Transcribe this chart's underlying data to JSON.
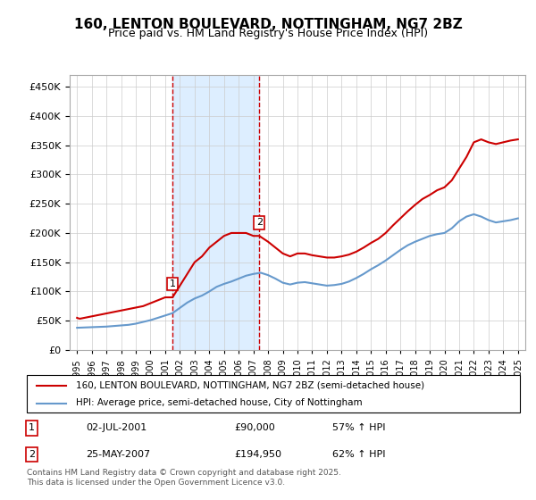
{
  "title": "160, LENTON BOULEVARD, NOTTINGHAM, NG7 2BZ",
  "subtitle": "Price paid vs. HM Land Registry's House Price Index (HPI)",
  "legend_line1": "160, LENTON BOULEVARD, NOTTINGHAM, NG7 2BZ (semi-detached house)",
  "legend_line2": "HPI: Average price, semi-detached house, City of Nottingham",
  "footnote": "Contains HM Land Registry data © Crown copyright and database right 2025.\nThis data is licensed under the Open Government Licence v3.0.",
  "sale1_label": "1",
  "sale1_date": "02-JUL-2001",
  "sale1_price": "£90,000",
  "sale1_hpi": "57% ↑ HPI",
  "sale2_label": "2",
  "sale2_date": "25-MAY-2007",
  "sale2_price": "£194,950",
  "sale2_hpi": "62% ↑ HPI",
  "red_color": "#cc0000",
  "blue_color": "#6699cc",
  "shade_color": "#ddeeff",
  "vline_color": "#cc0000",
  "background_color": "#ffffff",
  "grid_color": "#cccccc",
  "ylim_min": 0,
  "ylim_max": 470000,
  "sale1_x": 2001.5,
  "sale2_x": 2007.4,
  "red_x": [
    1995.0,
    1995.1,
    1995.2,
    1995.3,
    1995.5,
    1995.7,
    1995.9,
    1996.1,
    1996.3,
    1996.5,
    1996.7,
    1996.9,
    1997.1,
    1997.3,
    1997.5,
    1997.7,
    1997.9,
    1998.1,
    1998.3,
    1998.5,
    1998.7,
    1998.9,
    1999.1,
    1999.3,
    1999.5,
    1999.7,
    1999.9,
    2000.1,
    2000.3,
    2000.5,
    2000.7,
    2000.9,
    2001.0,
    2001.5,
    2002.0,
    2002.5,
    2003.0,
    2003.5,
    2004.0,
    2004.5,
    2005.0,
    2005.5,
    2006.0,
    2006.5,
    2007.0,
    2007.4,
    2008.0,
    2008.5,
    2009.0,
    2009.5,
    2010.0,
    2010.5,
    2011.0,
    2011.5,
    2012.0,
    2012.5,
    2013.0,
    2013.5,
    2014.0,
    2014.5,
    2015.0,
    2015.5,
    2016.0,
    2016.5,
    2017.0,
    2017.5,
    2018.0,
    2018.5,
    2019.0,
    2019.5,
    2020.0,
    2020.5,
    2021.0,
    2021.5,
    2022.0,
    2022.5,
    2023.0,
    2023.5,
    2024.0,
    2024.5,
    2025.0
  ],
  "red_y": [
    55000,
    54000,
    53500,
    54000,
    55000,
    56000,
    57000,
    58000,
    59000,
    60000,
    61000,
    62000,
    63000,
    64000,
    65000,
    66000,
    67000,
    68000,
    69000,
    70000,
    71000,
    72000,
    73000,
    74000,
    75000,
    77000,
    79000,
    81000,
    83000,
    85000,
    87000,
    89000,
    90000,
    90000,
    110000,
    130000,
    150000,
    160000,
    175000,
    185000,
    195000,
    200000,
    200000,
    200000,
    195000,
    195000,
    185000,
    175000,
    165000,
    160000,
    165000,
    165000,
    162000,
    160000,
    158000,
    158000,
    160000,
    163000,
    168000,
    175000,
    183000,
    190000,
    200000,
    213000,
    225000,
    237000,
    248000,
    258000,
    265000,
    273000,
    278000,
    290000,
    310000,
    330000,
    355000,
    360000,
    355000,
    352000,
    355000,
    358000,
    360000
  ],
  "blue_x": [
    1995.0,
    1995.5,
    1996.0,
    1996.5,
    1997.0,
    1997.5,
    1998.0,
    1998.5,
    1999.0,
    1999.5,
    2000.0,
    2000.5,
    2001.0,
    2001.5,
    2002.0,
    2002.5,
    2003.0,
    2003.5,
    2004.0,
    2004.5,
    2005.0,
    2005.5,
    2006.0,
    2006.5,
    2007.0,
    2007.5,
    2008.0,
    2008.5,
    2009.0,
    2009.5,
    2010.0,
    2010.5,
    2011.0,
    2011.5,
    2012.0,
    2012.5,
    2013.0,
    2013.5,
    2014.0,
    2014.5,
    2015.0,
    2015.5,
    2016.0,
    2016.5,
    2017.0,
    2017.5,
    2018.0,
    2018.5,
    2019.0,
    2019.5,
    2020.0,
    2020.5,
    2021.0,
    2021.5,
    2022.0,
    2022.5,
    2023.0,
    2023.5,
    2024.0,
    2024.5,
    2025.0
  ],
  "blue_y": [
    38000,
    38500,
    39000,
    39500,
    40000,
    41000,
    42000,
    43000,
    45000,
    48000,
    51000,
    55000,
    59000,
    63000,
    72000,
    81000,
    88000,
    93000,
    100000,
    108000,
    113000,
    117000,
    122000,
    127000,
    130000,
    132000,
    128000,
    122000,
    115000,
    112000,
    115000,
    116000,
    114000,
    112000,
    110000,
    111000,
    113000,
    117000,
    123000,
    130000,
    138000,
    145000,
    153000,
    162000,
    171000,
    179000,
    185000,
    190000,
    195000,
    198000,
    200000,
    208000,
    220000,
    228000,
    232000,
    228000,
    222000,
    218000,
    220000,
    222000,
    225000
  ]
}
